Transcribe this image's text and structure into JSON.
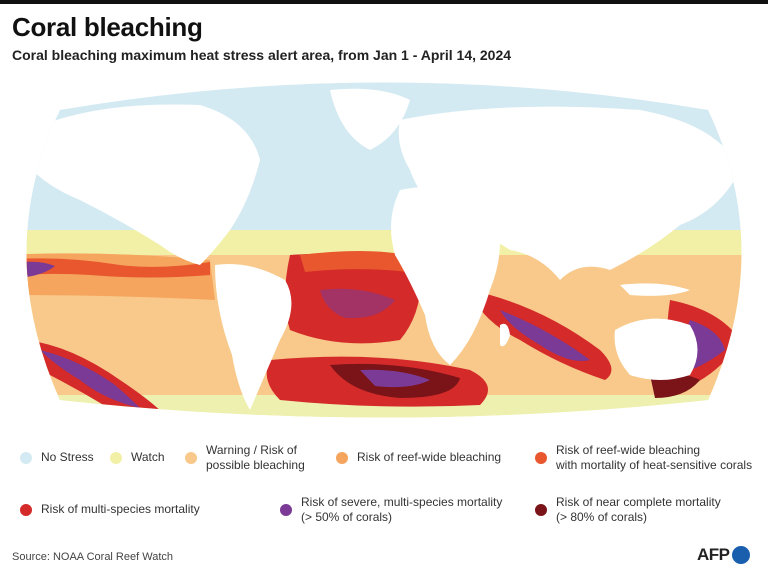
{
  "header": {
    "title": "Coral bleaching",
    "subtitle": "Coral bleaching maximum heat stress alert area,  from Jan 1 - April 14, 2024"
  },
  "legend": {
    "items": [
      {
        "label_lines": [
          "No Stress"
        ],
        "color": "#d4eaf2"
      },
      {
        "label_lines": [
          "Watch"
        ],
        "color": "#f2f0a6"
      },
      {
        "label_lines": [
          "Warning / Risk of",
          "possible bleaching"
        ],
        "color": "#f8c98a"
      },
      {
        "label_lines": [
          "Risk of reef-wide bleaching"
        ],
        "color": "#f5a55e"
      },
      {
        "label_lines": [
          "Risk of reef-wide bleaching",
          "with mortality of heat-sensitive corals"
        ],
        "color": "#e8572e"
      },
      {
        "label_lines": [
          "Risk of multi-species mortality"
        ],
        "color": "#d42a2a"
      },
      {
        "label_lines": [
          "Risk of severe, multi-species mortality",
          "(> 50% of corals)"
        ],
        "color": "#7a3a95"
      },
      {
        "label_lines": [
          "Risk of near complete mortality",
          "(> 80% of corals)"
        ],
        "color": "#7a1418"
      }
    ]
  },
  "footer": {
    "source": "Source: NOAA Coral Reef Watch",
    "logo_text": "AFP"
  }
}
